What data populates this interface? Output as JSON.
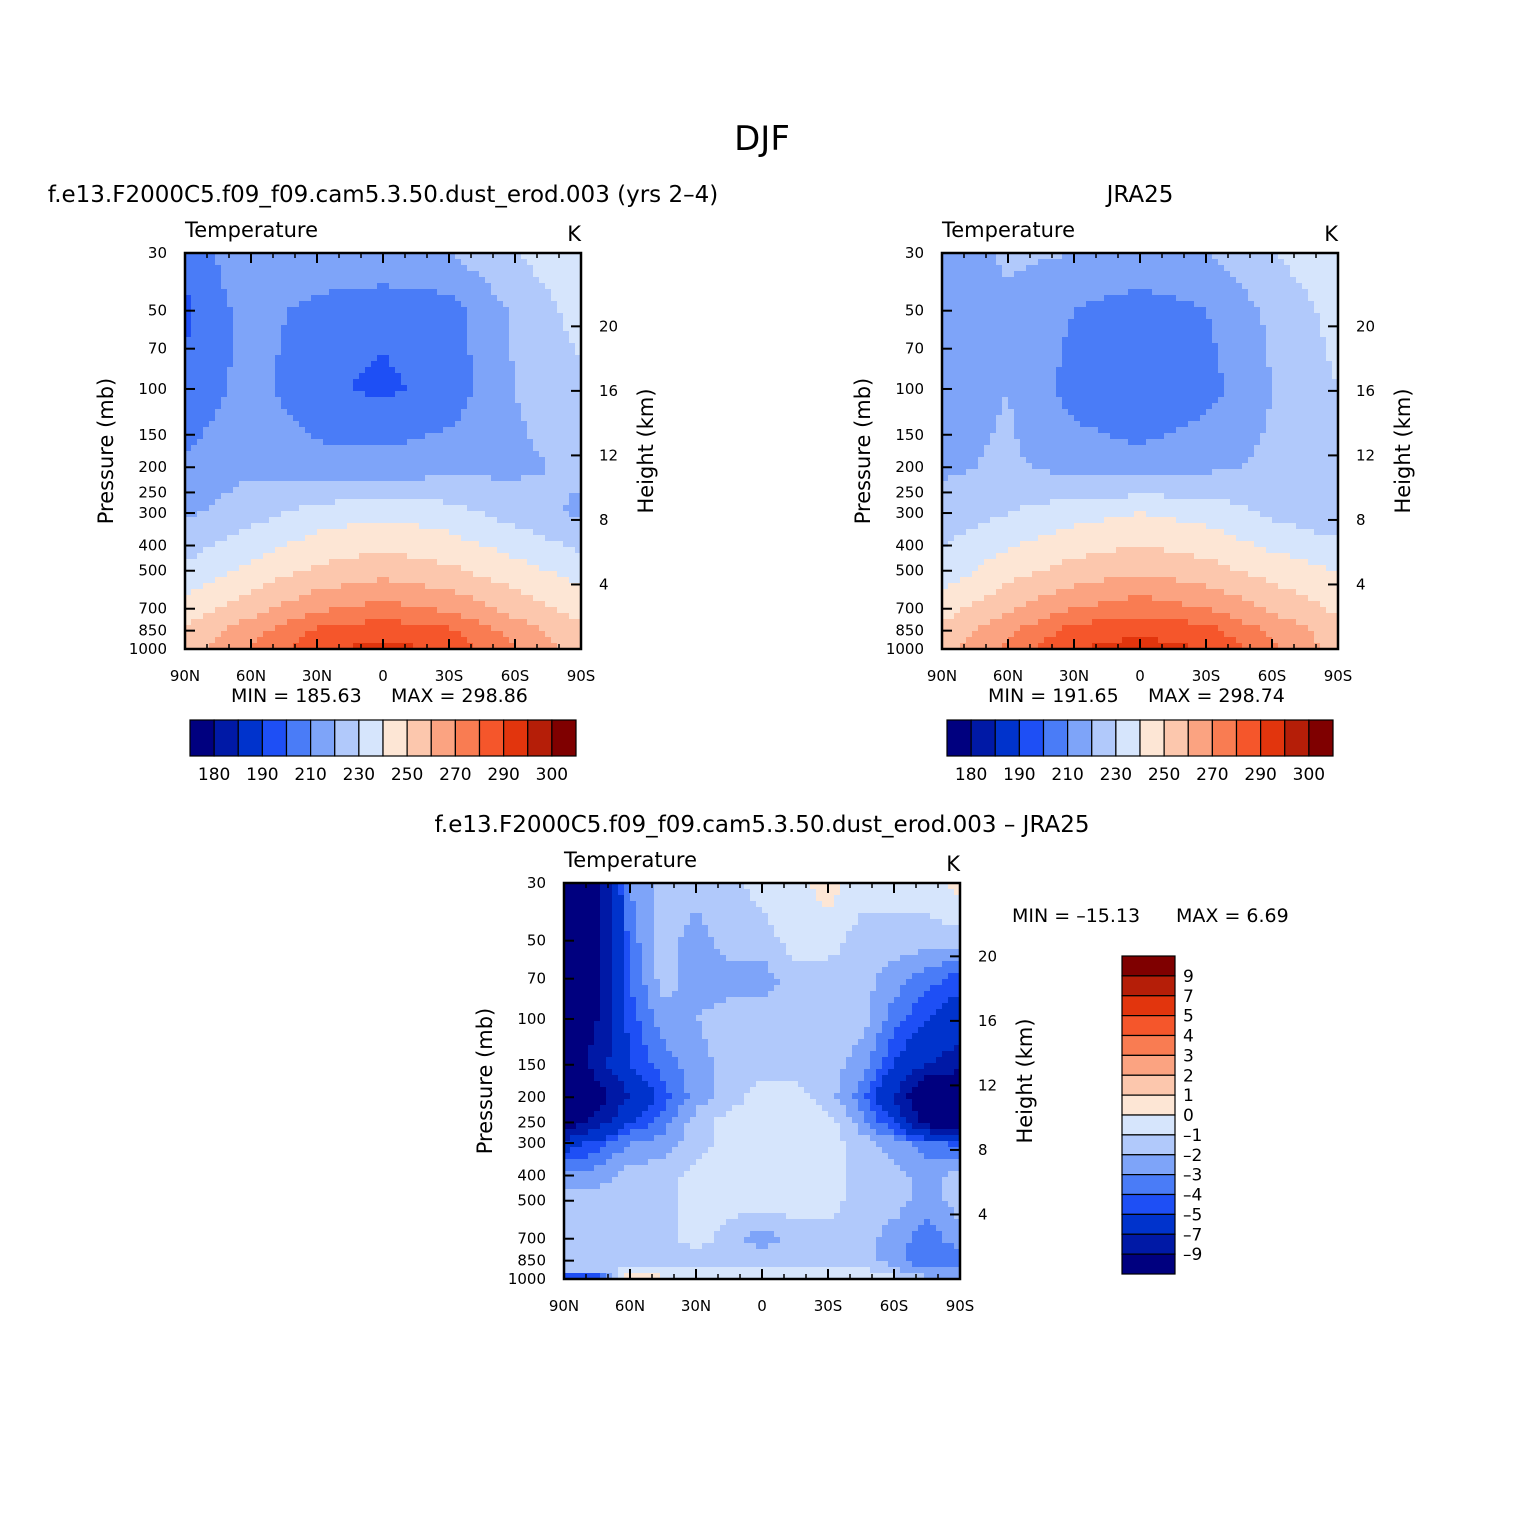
{
  "figure": {
    "title": "DJF",
    "top_left_title": "f.e13.F2000C5.f09_f09.cam5.3.50.dust_erod.003 (yrs 2–4)",
    "top_right_title": "JRA25",
    "bottom_title": "f.e13.F2000C5.f09_f09.cam5.3.50.dust_erod.003 – JRA25"
  },
  "colors": {
    "temperature_levels": [
      "#00007f",
      "#0019a6",
      "#0033cc",
      "#1e4ff5",
      "#4a7cf7",
      "#7ea4f9",
      "#b1c9fb",
      "#d6e5fc",
      "#fde6d5",
      "#fcc7ad",
      "#fba381",
      "#f97c52",
      "#f5562b",
      "#e2350d",
      "#b51e08",
      "#7f0000"
    ],
    "difference_levels": [
      "#00007f",
      "#0019a6",
      "#0033cc",
      "#1e4ff5",
      "#4a7cf7",
      "#7ea4f9",
      "#b1c9fb",
      "#d6e5fc",
      "#fde6d5",
      "#fcc7ad",
      "#fba381",
      "#f97c52",
      "#f5562b",
      "#e2350d",
      "#b51e08",
      "#7f0000"
    ]
  },
  "chart_data": [
    {
      "type": "heatmap",
      "id": "model",
      "title": "f.e13.F2000C5.f09_f09.cam5.3.50.dust_erod.003 (yrs 2–4)",
      "left_label": "Temperature",
      "right_label": "K",
      "ylabel": "Pressure (mb)",
      "ylabel_right": "Height (km)",
      "x_ticks": [
        "90N",
        "60N",
        "30N",
        "0",
        "30S",
        "60S",
        "90S"
      ],
      "x_values": [
        90,
        60,
        30,
        0,
        -30,
        -60,
        -90
      ],
      "y_ticks": [
        30,
        50,
        70,
        100,
        150,
        200,
        250,
        300,
        400,
        500,
        700,
        850,
        1000
      ],
      "y_ticks_right": [
        20,
        16,
        12,
        8,
        4
      ],
      "ylim": [
        30,
        1000
      ],
      "y_scale": "log",
      "min_label": "MIN = 185.63",
      "max_label": "MAX = 298.86",
      "colorbar_labels": [
        "180",
        "190",
        "210",
        "230",
        "250",
        "270",
        "290",
        "300"
      ],
      "field": {
        "lat": [
          90,
          60,
          30,
          0,
          -30,
          -60,
          -90
        ],
        "pressure": [
          30,
          50,
          100,
          200,
          300,
          500,
          700,
          850,
          1000
        ],
        "values": [
          [
            202,
            220,
            220,
            220,
            220,
            230,
            238
          ],
          [
            198,
            215,
            206,
            202,
            206,
            222,
            234
          ],
          [
            202,
            214,
            202,
            198,
            204,
            220,
            228
          ],
          [
            212,
            218,
            214,
            214,
            216,
            218,
            222
          ],
          [
            218,
            226,
            234,
            238,
            234,
            226,
            218
          ],
          [
            232,
            243,
            252,
            256,
            252,
            244,
            236
          ],
          [
            244,
            256,
            268,
            274,
            268,
            256,
            246
          ],
          [
            252,
            266,
            282,
            286,
            282,
            266,
            252
          ],
          [
            255,
            270,
            288,
            294,
            288,
            270,
            255
          ]
        ]
      }
    },
    {
      "type": "heatmap",
      "id": "obs",
      "title": "JRA25",
      "left_label": "Temperature",
      "right_label": "K",
      "ylabel": "Pressure (mb)",
      "ylabel_right": "Height (km)",
      "x_ticks": [
        "90N",
        "60N",
        "30N",
        "0",
        "30S",
        "60S",
        "90S"
      ],
      "x_values": [
        90,
        60,
        30,
        0,
        -30,
        -60,
        -90
      ],
      "y_ticks": [
        30,
        50,
        70,
        100,
        150,
        200,
        250,
        300,
        400,
        500,
        700,
        850,
        1000
      ],
      "y_ticks_right": [
        20,
        16,
        12,
        8,
        4
      ],
      "ylim": [
        30,
        1000
      ],
      "y_scale": "log",
      "min_label": "MIN = 191.65",
      "max_label": "MAX = 298.74",
      "colorbar_labels": [
        "180",
        "190",
        "210",
        "230",
        "250",
        "270",
        "290",
        "300"
      ],
      "field": {
        "lat": [
          90,
          60,
          30,
          0,
          -30,
          -60,
          -90
        ],
        "pressure": [
          30,
          50,
          100,
          200,
          300,
          500,
          700,
          850,
          1000
        ],
        "values": [
          [
            214,
            222,
            220,
            220,
            220,
            230,
            238
          ],
          [
            212,
            218,
            210,
            204,
            210,
            222,
            234
          ],
          [
            214,
            220,
            206,
            200,
            206,
            220,
            230
          ],
          [
            218,
            222,
            216,
            214,
            218,
            222,
            224
          ],
          [
            224,
            230,
            236,
            240,
            236,
            228,
            222
          ],
          [
            234,
            246,
            254,
            258,
            254,
            246,
            240
          ],
          [
            246,
            258,
            270,
            276,
            270,
            258,
            248
          ],
          [
            252,
            268,
            284,
            288,
            284,
            268,
            254
          ],
          [
            256,
            272,
            290,
            294,
            290,
            272,
            256
          ]
        ]
      }
    },
    {
      "type": "heatmap",
      "id": "diff",
      "title": "f.e13.F2000C5.f09_f09.cam5.3.50.dust_erod.003 – JRA25",
      "left_label": "Temperature",
      "right_label": "K",
      "ylabel": "Pressure (mb)",
      "ylabel_right": "Height (km)",
      "x_ticks": [
        "90N",
        "60N",
        "30N",
        "0",
        "30S",
        "60S",
        "90S"
      ],
      "x_values": [
        90,
        60,
        30,
        0,
        -30,
        -60,
        -90
      ],
      "y_ticks": [
        30,
        50,
        70,
        100,
        150,
        200,
        250,
        300,
        400,
        500,
        700,
        850,
        1000
      ],
      "y_ticks_right": [
        20,
        16,
        12,
        8,
        4
      ],
      "ylim": [
        30,
        1000
      ],
      "y_scale": "log",
      "min_label": "MIN = –15.13",
      "max_label": "MAX = 6.69",
      "colorbar_labels": [
        "9",
        "7",
        "5",
        "4",
        "3",
        "2",
        "1",
        "0",
        "–1",
        "–2",
        "–3",
        "–4",
        "–5",
        "–7",
        "–9"
      ],
      "field": {
        "lat": [
          90,
          75,
          60,
          45,
          30,
          15,
          0,
          -15,
          -30,
          -45,
          -60,
          -75,
          -90
        ],
        "pressure": [
          30,
          50,
          70,
          100,
          150,
          200,
          250,
          300,
          400,
          500,
          700,
          850,
          950,
          1000
        ],
        "values": [
          [
            -12,
            -10,
            -3,
            -1.5,
            -1.5,
            -1.5,
            -0.5,
            -0.5,
            0.5,
            -0.5,
            -0.5,
            -0.5,
            0.5
          ],
          [
            -12,
            -10,
            -3.5,
            -1.5,
            -2.5,
            -1.5,
            -1.5,
            -0.5,
            -0.5,
            -1.5,
            -1.5,
            -1.5,
            -1.5
          ],
          [
            -12,
            -10,
            -4,
            -1.5,
            -2.5,
            -2.5,
            -2.5,
            -1.5,
            -1.5,
            -1.5,
            -2.5,
            -3.5,
            -4.5
          ],
          [
            -11,
            -9,
            -4.5,
            -2.5,
            -2,
            -1.5,
            -1.5,
            -1.5,
            -1.5,
            -1.5,
            -3.5,
            -5,
            -6
          ],
          [
            -12,
            -8,
            -5,
            -3.5,
            -2.5,
            -1.5,
            -1.5,
            -1.5,
            -1.5,
            -2.5,
            -5,
            -7,
            -8
          ],
          [
            -14,
            -10,
            -7,
            -4.5,
            -2.5,
            -1.5,
            -0.5,
            -0.5,
            -1.5,
            -3.5,
            -7,
            -12,
            -13
          ],
          [
            -11,
            -8,
            -5,
            -3.5,
            -1.5,
            -0.5,
            -0.5,
            -0.5,
            -0.5,
            -2.5,
            -5,
            -10,
            -11
          ],
          [
            -6,
            -4.5,
            -3,
            -2.5,
            -1.5,
            -0.5,
            -0.5,
            -0.5,
            -0.5,
            -1.5,
            -2.5,
            -3.5,
            -4.5
          ],
          [
            -2.5,
            -2.5,
            -1.5,
            -1.5,
            -0.5,
            -0.5,
            -0.5,
            -0.5,
            -0.5,
            -1.5,
            -1.5,
            -2.5,
            -1.5
          ],
          [
            -1.5,
            -1.5,
            -1.5,
            -1.5,
            -0.5,
            -0.5,
            -0.5,
            -0.5,
            -0.5,
            -1.5,
            -1.5,
            -2.5,
            -1.5
          ],
          [
            -1.5,
            -1.5,
            -1.5,
            -1.5,
            -0.5,
            -1.5,
            -2.5,
            -1.5,
            -1.5,
            -1.5,
            -2.5,
            -3.5,
            -2.5
          ],
          [
            -1.5,
            -1.5,
            -1.5,
            -1.5,
            -1.5,
            -1.5,
            -1.5,
            -1.5,
            -1.5,
            -1.5,
            -2.5,
            -4,
            -3.5
          ],
          [
            -1.5,
            -1.5,
            -0.5,
            -0.5,
            -0.5,
            -0.5,
            -0.5,
            -0.5,
            -0.5,
            -0.5,
            -1.5,
            -2.5,
            -2.5
          ],
          [
            -8,
            -8,
            2,
            0.5,
            0.5,
            0.5,
            0.5,
            -0.5,
            -0.5,
            0.5,
            -0.5,
            -1.5,
            -1.5
          ]
        ]
      }
    }
  ]
}
